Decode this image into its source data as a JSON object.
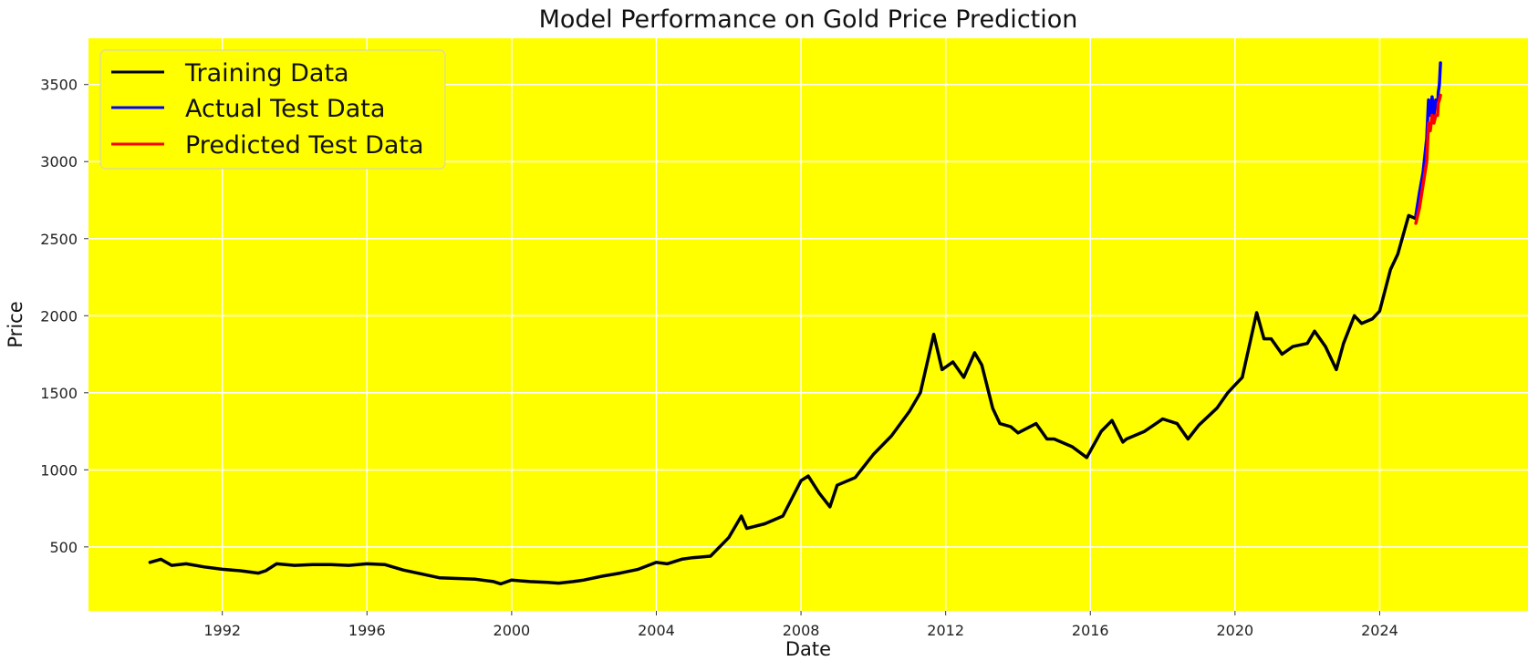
{
  "chart_data": {
    "type": "line",
    "title": "Model Performance on Gold Price Prediction",
    "xlabel": "Date",
    "ylabel": "Price",
    "xlim": [
      1988.3,
      2028.1
    ],
    "ylim": [
      85,
      3800
    ],
    "xticks": [
      "1992",
      "1996",
      "2000",
      "2004",
      "2008",
      "2012",
      "2016",
      "2020",
      "2024"
    ],
    "yticks": [
      "500",
      "1000",
      "1500",
      "2000",
      "2500",
      "3000",
      "3500"
    ],
    "grid": true,
    "legend_position": "top-left",
    "colors": {
      "background": "#ffff00",
      "grid": "#ffffff"
    },
    "series": [
      {
        "name": "Training Data",
        "color": "#000000",
        "x": [
          1990.0,
          1990.3,
          1990.6,
          1991.0,
          1991.5,
          1992.0,
          1992.5,
          1993.0,
          1993.2,
          1993.5,
          1994.0,
          1994.5,
          1995.0,
          1995.5,
          1996.0,
          1996.5,
          1997.0,
          1997.5,
          1998.0,
          1998.5,
          1999.0,
          1999.5,
          1999.7,
          2000.0,
          2000.5,
          2001.0,
          2001.3,
          2001.7,
          2002.0,
          2002.5,
          2003.0,
          2003.5,
          2004.0,
          2004.3,
          2004.7,
          2005.0,
          2005.5,
          2006.0,
          2006.35,
          2006.5,
          2007.0,
          2007.5,
          2008.0,
          2008.2,
          2008.5,
          2008.8,
          2009.0,
          2009.5,
          2010.0,
          2010.5,
          2011.0,
          2011.3,
          2011.67,
          2011.9,
          2012.2,
          2012.5,
          2012.8,
          2013.0,
          2013.3,
          2013.5,
          2013.8,
          2014.0,
          2014.5,
          2014.8,
          2015.0,
          2015.5,
          2015.9,
          2016.3,
          2016.6,
          2016.9,
          2017.0,
          2017.5,
          2018.0,
          2018.4,
          2018.7,
          2019.0,
          2019.5,
          2019.8,
          2020.0,
          2020.2,
          2020.6,
          2020.8,
          2021.0,
          2021.3,
          2021.6,
          2022.0,
          2022.2,
          2022.5,
          2022.8,
          2023.0,
          2023.3,
          2023.5,
          2023.8,
          2024.0,
          2024.3,
          2024.5,
          2024.8,
          2025.0
        ],
        "y": [
          400,
          420,
          380,
          390,
          370,
          355,
          345,
          330,
          345,
          390,
          380,
          385,
          385,
          380,
          390,
          385,
          350,
          325,
          300,
          295,
          290,
          275,
          260,
          285,
          275,
          270,
          265,
          275,
          285,
          310,
          330,
          355,
          400,
          390,
          420,
          430,
          440,
          560,
          700,
          620,
          650,
          700,
          930,
          960,
          850,
          760,
          900,
          950,
          1100,
          1220,
          1380,
          1500,
          1880,
          1650,
          1700,
          1600,
          1760,
          1680,
          1400,
          1300,
          1280,
          1240,
          1300,
          1200,
          1200,
          1150,
          1080,
          1250,
          1320,
          1180,
          1200,
          1250,
          1330,
          1300,
          1200,
          1290,
          1400,
          1500,
          1550,
          1600,
          2020,
          1850,
          1850,
          1750,
          1800,
          1820,
          1900,
          1800,
          1650,
          1820,
          2000,
          1950,
          1980,
          2030,
          2300,
          2400,
          2650,
          2630
        ]
      },
      {
        "name": "Actual Test Data",
        "color": "#0000ff",
        "x": [
          2025.0,
          2025.1,
          2025.2,
          2025.3,
          2025.35,
          2025.4,
          2025.45,
          2025.5,
          2025.55,
          2025.6,
          2025.62,
          2025.65,
          2025.68
        ],
        "y": [
          2650,
          2800,
          2930,
          3150,
          3400,
          3300,
          3420,
          3300,
          3400,
          3350,
          3450,
          3500,
          3640
        ]
      },
      {
        "name": "Predicted Test Data",
        "color": "#ff0000",
        "x": [
          2025.0,
          2025.1,
          2025.2,
          2025.3,
          2025.35,
          2025.4,
          2025.45,
          2025.5,
          2025.55,
          2025.6,
          2025.62,
          2025.65,
          2025.68
        ],
        "y": [
          2600,
          2700,
          2850,
          3000,
          3250,
          3200,
          3300,
          3250,
          3300,
          3300,
          3380,
          3400,
          3430
        ]
      }
    ]
  }
}
